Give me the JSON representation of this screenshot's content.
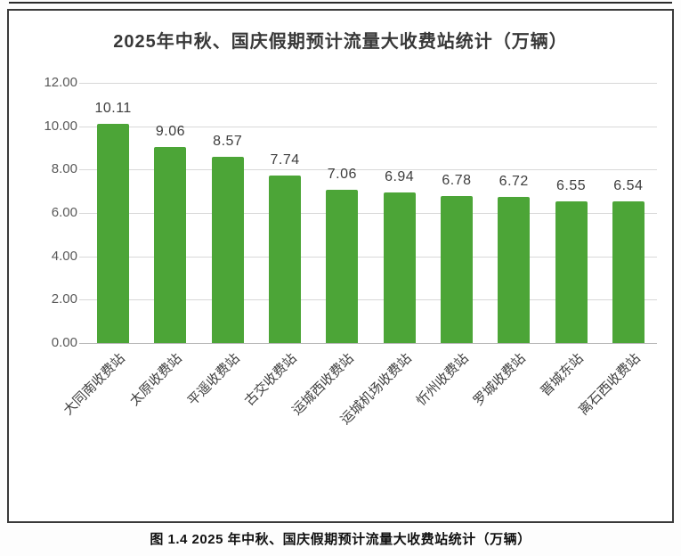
{
  "page": {
    "caption": "图 1.4  2025 年中秋、国庆假期预计流量大收费站统计（万辆）"
  },
  "chart_data": {
    "type": "bar",
    "title": "2025年中秋、国庆假期预计流量大收费站统计（万辆）",
    "categories": [
      "大同南收费站",
      "太原收费站",
      "平遥收费站",
      "古交收费站",
      "运城西收费站",
      "运城机场收费站",
      "忻州收费站",
      "罗城收费站",
      "晋城东站",
      "离石西收费站"
    ],
    "values": [
      10.11,
      9.06,
      8.57,
      7.74,
      7.06,
      6.94,
      6.78,
      6.72,
      6.55,
      6.54
    ],
    "value_labels": [
      "10.11",
      "9.06",
      "8.57",
      "7.74",
      "7.06",
      "6.94",
      "6.78",
      "6.72",
      "6.55",
      "6.54"
    ],
    "xlabel": "",
    "ylabel": "",
    "ylim": [
      0,
      12
    ],
    "ytick_step": 2,
    "ytick_labels": [
      "0.00",
      "2.00",
      "4.00",
      "6.00",
      "8.00",
      "10.00",
      "12.00"
    ],
    "grid": true,
    "legend": "none",
    "bar_color": "#4CA537",
    "gridline_color": "#d8d8d8",
    "axis_line_color": "#b9b9b9",
    "value_label_color": "#3d3d3d",
    "tick_label_color": "#595959"
  }
}
